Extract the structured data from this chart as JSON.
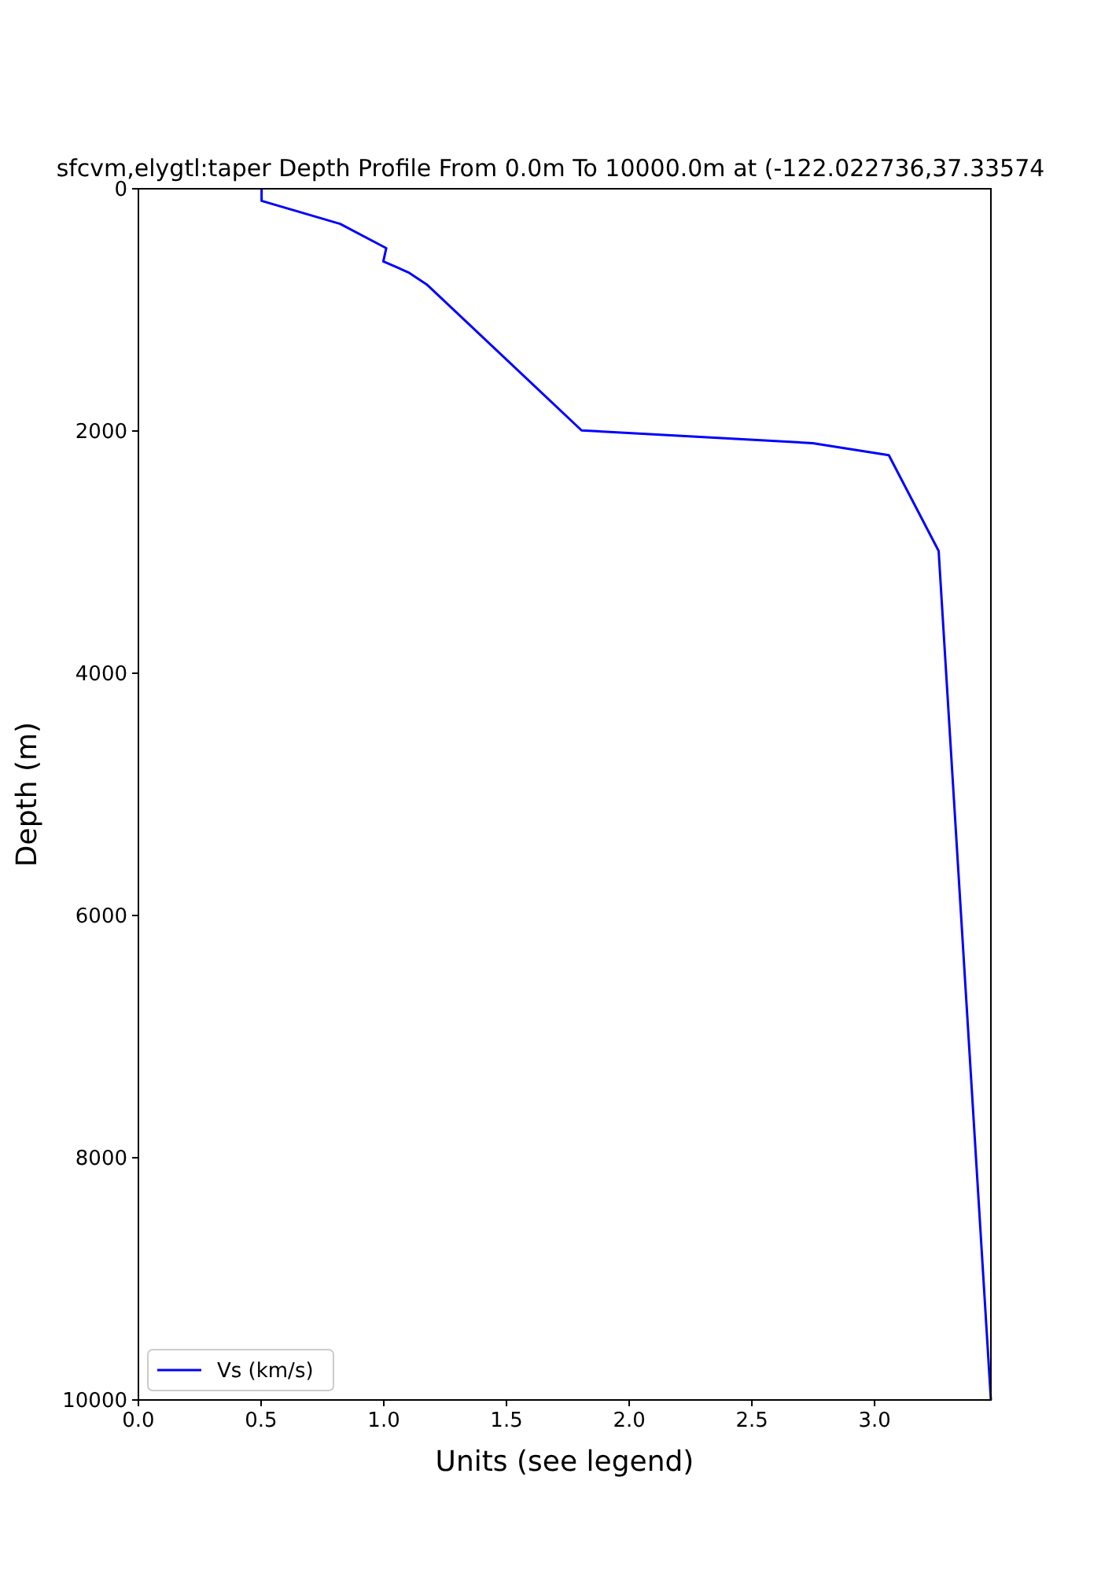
{
  "chart_data": {
    "type": "line",
    "title": "sfcvm,elygtl:taper Depth Profile From 0.0m To 10000.0m at (-122.022736,37.33574",
    "xlabel": "Units (see legend)",
    "ylabel": "Depth (m)",
    "xlim": [
      0,
      3.474
    ],
    "xticks": [
      {
        "value": 0,
        "label": "0.0"
      },
      {
        "value": 0.5,
        "label": "0.5"
      },
      {
        "value": 1,
        "label": "1.0"
      },
      {
        "value": 1.5,
        "label": "1.5"
      },
      {
        "value": 2,
        "label": "2.0"
      },
      {
        "value": 2.5,
        "label": "2.5"
      },
      {
        "value": 3,
        "label": "3.0"
      }
    ],
    "ylim": [
      10000,
      0
    ],
    "yticks": [
      0,
      2000,
      4000,
      6000,
      8000,
      10000
    ],
    "grid": false,
    "legend": "bottom left",
    "line_style": "solid",
    "marker": "none",
    "series": [
      {
        "name": "Vs (km/s)",
        "color": "#0000ff",
        "x": [
          0.502,
          0.502,
          0.822,
          1.01,
          0.998,
          1.1,
          1.175,
          1.806,
          2.748,
          3.058,
          3.261,
          3.474
        ],
        "values": [
          0,
          100,
          290,
          490,
          600,
          690,
          790,
          1995,
          2100,
          2200,
          2990,
          10000
        ]
      }
    ]
  }
}
